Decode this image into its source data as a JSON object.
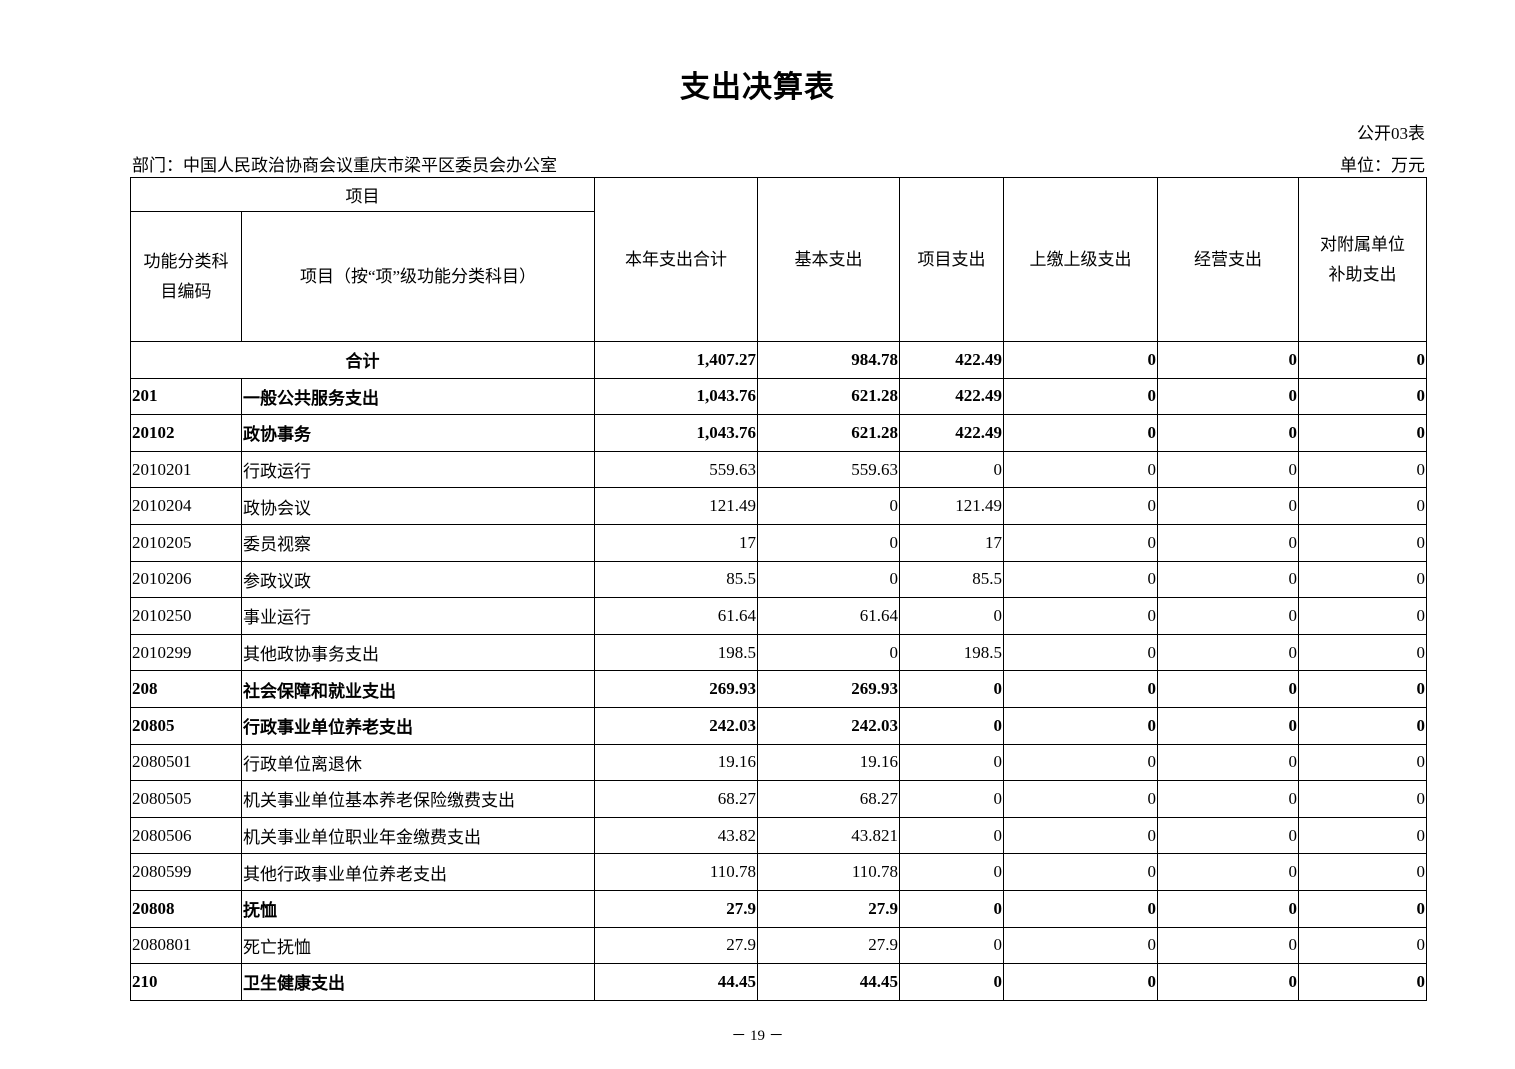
{
  "title": "支出决算表",
  "table_no": "公开03表",
  "department": "部门：中国人民政治协商会议重庆市梁平区委员会办公室",
  "unit": "单位：万元",
  "headers": {
    "project": "项目",
    "code": "功能分类科目编码",
    "name": "项目（按“项”级功能分类科目）",
    "total": "本年支出合计",
    "basic": "基本支出",
    "project_exp": "项目支出",
    "upper": "上缴上级支出",
    "operating": "经营支出",
    "subsidy": "对附属单位补助支出"
  },
  "total_row": {
    "label": "合计",
    "values": [
      "1,407.27",
      "984.78",
      "422.49",
      "0",
      "0",
      "0"
    ]
  },
  "rows": [
    {
      "code": "201",
      "name": "一般公共服务支出",
      "bold": true,
      "values": [
        "1,043.76",
        "621.28",
        "422.49",
        "0",
        "0",
        "0"
      ]
    },
    {
      "code": "20102",
      "name": "政协事务",
      "bold": true,
      "values": [
        "1,043.76",
        "621.28",
        "422.49",
        "0",
        "0",
        "0"
      ]
    },
    {
      "code": "2010201",
      "name": "行政运行",
      "bold": false,
      "values": [
        "559.63",
        "559.63",
        "0",
        "0",
        "0",
        "0"
      ]
    },
    {
      "code": "2010204",
      "name": "政协会议",
      "bold": false,
      "values": [
        "121.49",
        "0",
        "121.49",
        "0",
        "0",
        "0"
      ]
    },
    {
      "code": "2010205",
      "name": "委员视察",
      "bold": false,
      "values": [
        "17",
        "0",
        "17",
        "0",
        "0",
        "0"
      ]
    },
    {
      "code": "2010206",
      "name": "参政议政",
      "bold": false,
      "values": [
        "85.5",
        "0",
        "85.5",
        "0",
        "0",
        "0"
      ]
    },
    {
      "code": "2010250",
      "name": "事业运行",
      "bold": false,
      "values": [
        "61.64",
        "61.64",
        "0",
        "0",
        "0",
        "0"
      ]
    },
    {
      "code": "2010299",
      "name": "其他政协事务支出",
      "bold": false,
      "values": [
        "198.5",
        "0",
        "198.5",
        "0",
        "0",
        "0"
      ]
    },
    {
      "code": "208",
      "name": "社会保障和就业支出",
      "bold": true,
      "values": [
        "269.93",
        "269.93",
        "0",
        "0",
        "0",
        "0"
      ]
    },
    {
      "code": "20805",
      "name": "行政事业单位养老支出",
      "bold": true,
      "values": [
        "242.03",
        "242.03",
        "0",
        "0",
        "0",
        "0"
      ]
    },
    {
      "code": "2080501",
      "name": "行政单位离退休",
      "bold": false,
      "values": [
        "19.16",
        "19.16",
        "0",
        "0",
        "0",
        "0"
      ]
    },
    {
      "code": "2080505",
      "name": "机关事业单位基本养老保险缴费支出",
      "bold": false,
      "values": [
        "68.27",
        "68.27",
        "0",
        "0",
        "0",
        "0"
      ]
    },
    {
      "code": "2080506",
      "name": "机关事业单位职业年金缴费支出",
      "bold": false,
      "values": [
        "43.82",
        "43.821",
        "0",
        "0",
        "0",
        "0"
      ]
    },
    {
      "code": "2080599",
      "name": "其他行政事业单位养老支出",
      "bold": false,
      "values": [
        "110.78",
        "110.78",
        "0",
        "0",
        "0",
        "0"
      ]
    },
    {
      "code": "20808",
      "name": "抚恤",
      "bold": true,
      "values": [
        "27.9",
        "27.9",
        "0",
        "0",
        "0",
        "0"
      ]
    },
    {
      "code": "2080801",
      "name": "死亡抚恤",
      "bold": false,
      "values": [
        "27.9",
        "27.9",
        "0",
        "0",
        "0",
        "0"
      ]
    },
    {
      "code": "210",
      "name": "卫生健康支出",
      "bold": true,
      "values": [
        "44.45",
        "44.45",
        "0",
        "0",
        "0",
        "0"
      ]
    }
  ],
  "page_number": "－ 19 －"
}
